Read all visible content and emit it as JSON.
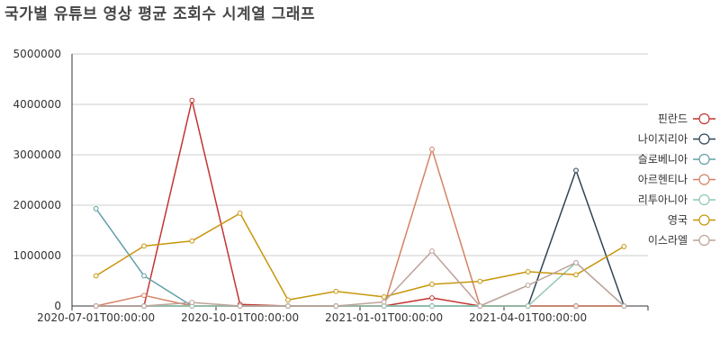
{
  "chart_data": {
    "type": "line",
    "title": "국가별 유튜브 영상 평균 조회수 시계열 그래프",
    "x": [
      "2020-07-01T00:00:00",
      "2020-08-01T00:00:00",
      "2020-09-01T00:00:00",
      "2020-10-01T00:00:00",
      "2020-11-01T00:00:00",
      "2020-12-01T00:00:00",
      "2021-01-01T00:00:00",
      "2021-02-01T00:00:00",
      "2021-03-01T00:00:00",
      "2021-04-01T00:00:00",
      "2021-05-01T00:00:00",
      "2021-06-01T00:00:00"
    ],
    "x_tick_labels": [
      "2020-07-01T00:00:00",
      "2020-10-01T00:00:00",
      "2021-01-01T00:00:00",
      "2021-04-01T00:00:00"
    ],
    "ylim": [
      0,
      5000000
    ],
    "y_ticks": [
      "0",
      "1000000",
      "2000000",
      "3000000",
      "4000000",
      "5000000"
    ],
    "grid": "horizontal",
    "legend_position": "right",
    "series": [
      {
        "name": "핀란드",
        "color": "#c23531",
        "values": [
          0,
          0,
          4080000,
          30000,
          0,
          0,
          0,
          160000,
          0,
          0,
          0,
          0
        ]
      },
      {
        "name": "나이지리아",
        "color": "#2f4554",
        "values": [
          0,
          0,
          0,
          0,
          0,
          0,
          0,
          0,
          0,
          0,
          2690000,
          0
        ]
      },
      {
        "name": "슬로베니아",
        "color": "#61a0a8",
        "values": [
          1930000,
          600000,
          0,
          0,
          0,
          0,
          0,
          0,
          0,
          0,
          0,
          0
        ]
      },
      {
        "name": "아르헨티나",
        "color": "#d48265",
        "values": [
          0,
          210000,
          0,
          0,
          0,
          0,
          0,
          3110000,
          0,
          0,
          0,
          0
        ]
      },
      {
        "name": "리투아니아",
        "color": "#91c7ae",
        "values": [
          0,
          0,
          0,
          0,
          0,
          0,
          0,
          0,
          0,
          0,
          860000,
          0
        ]
      },
      {
        "name": "영국",
        "color": "#c8960c",
        "values": [
          600000,
          1190000,
          1290000,
          1840000,
          120000,
          290000,
          180000,
          430000,
          490000,
          680000,
          620000,
          1180000
        ]
      },
      {
        "name": "이스라엘",
        "color": "#bda29a",
        "values": [
          0,
          0,
          70000,
          0,
          0,
          0,
          80000,
          1090000,
          0,
          410000,
          860000,
          0
        ]
      }
    ]
  }
}
